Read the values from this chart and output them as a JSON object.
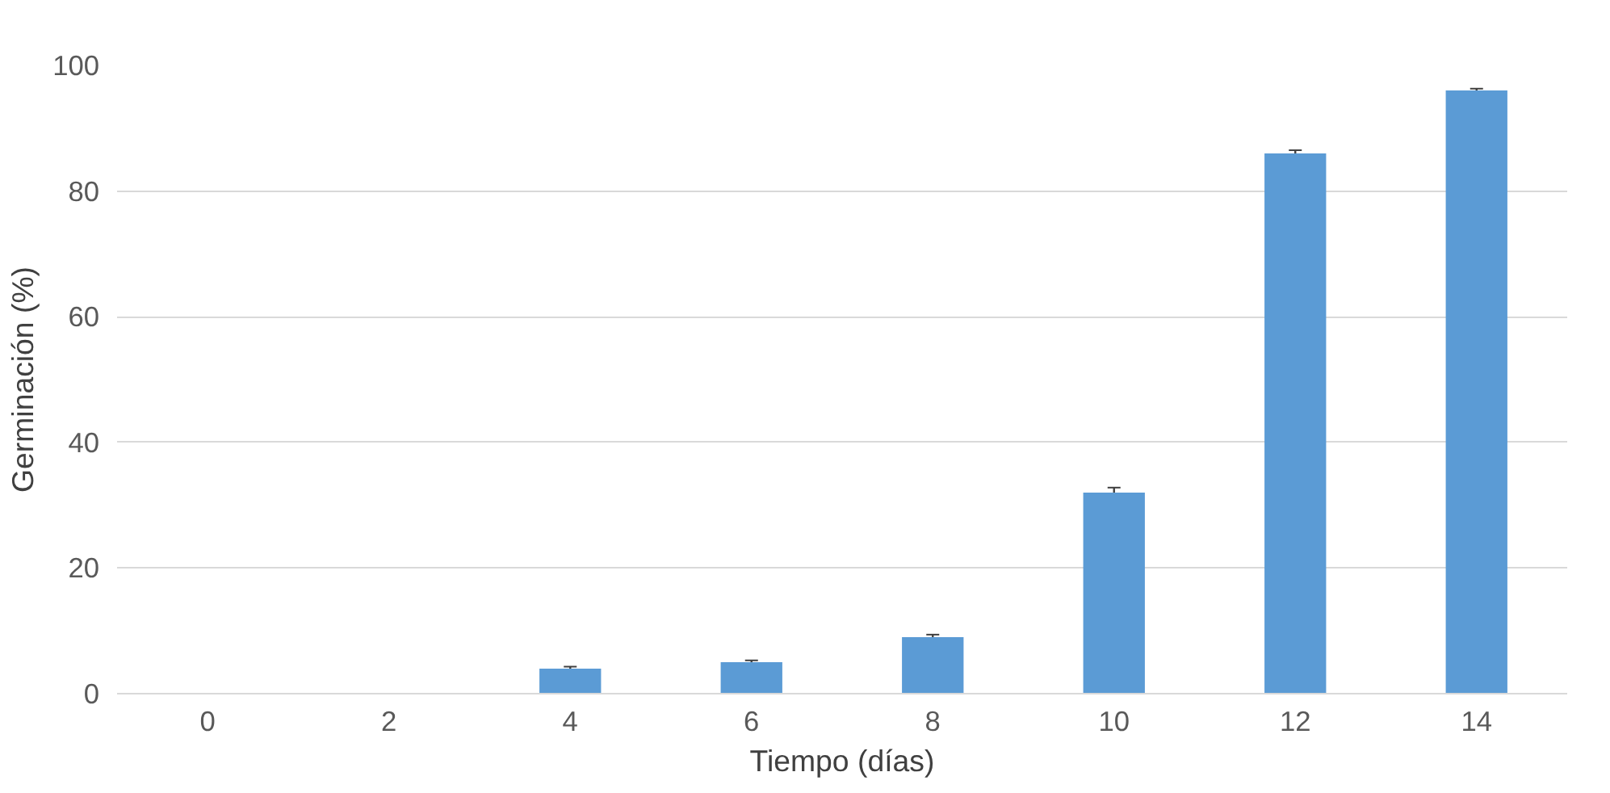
{
  "chart_data": {
    "type": "bar",
    "xlabel": "Tiempo (días)",
    "ylabel": "Germinación (%)",
    "categories": [
      "0",
      "2",
      "4",
      "6",
      "8",
      "10",
      "12",
      "14"
    ],
    "values": [
      0,
      0,
      4,
      5,
      9,
      32,
      86,
      96
    ],
    "errors": [
      0,
      0,
      0.3,
      0.3,
      0.4,
      0.8,
      0.5,
      0.3
    ],
    "color": "#5b9bd5",
    "ylim": [
      0,
      100
    ],
    "yticks": [
      0,
      20,
      40,
      60,
      80,
      100
    ],
    "grid": "y"
  }
}
